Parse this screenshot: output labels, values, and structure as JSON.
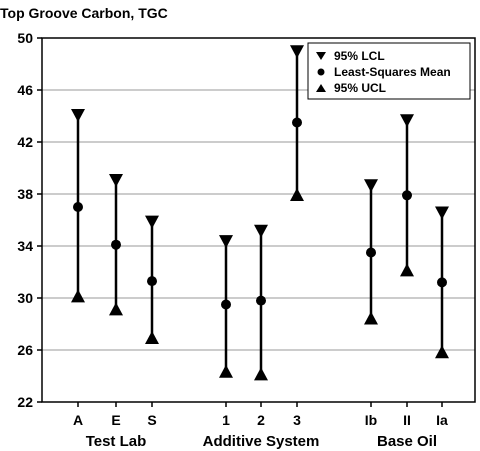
{
  "chart_data": {
    "type": "interval",
    "title": "Top Groove Carbon, TGC",
    "xlabel": "",
    "ylabel": "",
    "ylim": [
      22,
      50
    ],
    "yticks": [
      22,
      26,
      30,
      34,
      38,
      42,
      46,
      50
    ],
    "grid": true,
    "legend_position": "top-right",
    "legend": {
      "lcl": "95% LCL",
      "mean": "Least-Squares Mean",
      "ucl": "95% UCL"
    },
    "groups": [
      {
        "label": "Test Lab",
        "categories": [
          "A",
          "E",
          "S"
        ],
        "lcl": [
          44.0,
          39.0,
          35.8
        ],
        "mean": [
          37.0,
          34.1,
          31.3
        ],
        "ucl": [
          30.2,
          29.2,
          27.0
        ]
      },
      {
        "label": "Additive System",
        "categories": [
          "1",
          "2",
          "3"
        ],
        "lcl": [
          34.3,
          35.1,
          48.9
        ],
        "mean": [
          29.5,
          29.8,
          43.5
        ],
        "ucl": [
          24.4,
          24.2,
          38.0
        ]
      },
      {
        "label": "Base Oil",
        "categories": [
          "Ib",
          "II",
          "Ia"
        ],
        "lcl": [
          38.6,
          43.6,
          36.5
        ],
        "mean": [
          33.5,
          37.9,
          31.2
        ],
        "ucl": [
          28.5,
          32.2,
          25.9
        ]
      }
    ]
  }
}
